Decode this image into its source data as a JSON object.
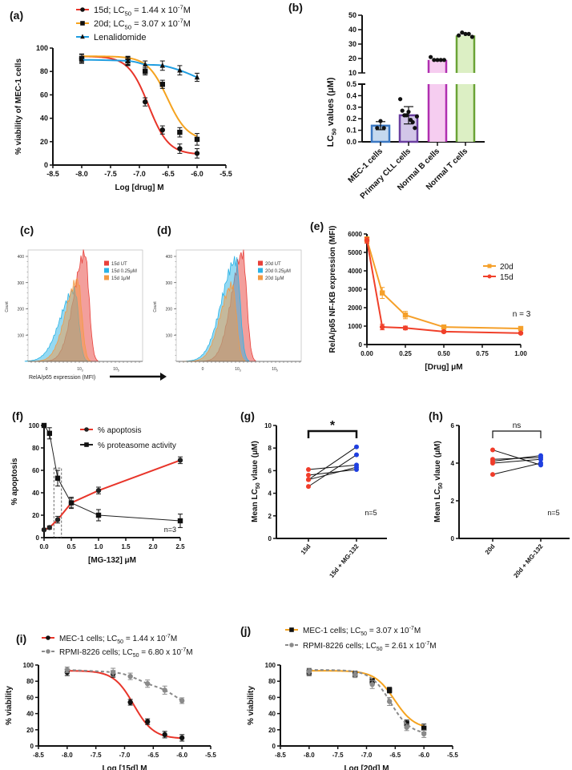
{
  "chart_data": [
    {
      "panel": "(a)",
      "type": "line",
      "xlabel": "Log [drug] M",
      "ylabel": "% viability of MEC-1 cells",
      "xlim": [
        -8.5,
        -5.5
      ],
      "ylim": [
        0,
        100
      ],
      "xticks": [
        "-8.5",
        "-8.0",
        "-7.5",
        "-7.0",
        "-6.5",
        "-6.0",
        "-5.5"
      ],
      "yticks": [
        "0",
        "20",
        "40",
        "60",
        "80",
        "100"
      ],
      "legend_position": "top",
      "series": [
        {
          "name_parts": [
            "15d; LC",
            "50",
            " = 1.44 x 10",
            "-7",
            "M"
          ],
          "lc50_M": 1.44e-07,
          "color": "#e8352a",
          "marker": "circle",
          "fit": "sigmoid",
          "x": [
            -8,
            -7.2,
            -6.9,
            -6.6,
            -6.3,
            -6
          ],
          "y": [
            91,
            89,
            54,
            30,
            14,
            10
          ],
          "err": [
            4,
            4,
            3.5,
            3.5,
            4,
            4
          ]
        },
        {
          "name_parts": [
            "20d; LC",
            "50",
            " = 3.07 x 10",
            "-7",
            "M"
          ],
          "lc50_M": 3.07e-07,
          "color": "#f5a31f",
          "marker": "square",
          "fit": "sigmoid",
          "x": [
            -8,
            -7.2,
            -6.9,
            -6.6,
            -6.3,
            -6
          ],
          "y": [
            91,
            89,
            80,
            69,
            28,
            22
          ],
          "err": [
            3.5,
            3.5,
            3,
            3.5,
            4,
            5
          ]
        },
        {
          "name_parts": [
            "Lenalidomide"
          ],
          "color": "#1f9de0",
          "marker": "triangle",
          "fit": "smooth",
          "x": [
            -8,
            -7.2,
            -6.9,
            -6.6,
            -6.3,
            -6
          ],
          "y": [
            90,
            89,
            86,
            85,
            81,
            75
          ],
          "err": [
            3,
            3,
            3,
            4,
            4,
            3.5
          ]
        }
      ]
    },
    {
      "panel": "(b)",
      "type": "bar",
      "ylabel_parts": [
        "LC",
        "50",
        " values (μM)"
      ],
      "categories": [
        "MEC-1 cells",
        "Primary CLL cells",
        "Normal B cells",
        "Normal T cells"
      ],
      "yticks_lower": [
        "0.0",
        "0.1",
        "0.2",
        "0.3",
        "0.4",
        "0.5"
      ],
      "yticks_upper": [
        "10",
        "20",
        "30",
        "40",
        "50"
      ],
      "ylim_lower": [
        0,
        0.5
      ],
      "ylim_upper": [
        10,
        50
      ],
      "broken_axis": true,
      "bars": [
        {
          "mean": 0.14,
          "sd": 0.035,
          "fill": "#c5d9ef",
          "stroke": "#3b78c2",
          "points": [
            0.12,
            0.18,
            0.12
          ]
        },
        {
          "mean": 0.23,
          "sd": 0.075,
          "fill": "#d2c6e8",
          "stroke": "#6a3fa0",
          "points": [
            0.37,
            0.27,
            0.23,
            0.23,
            0.26,
            0.19,
            0.17,
            0.12,
            0.22
          ]
        },
        {
          "mean": 19,
          "fill": "#f6cdf0",
          "stroke": "#b02fb0",
          "points": [
            21,
            19,
            19,
            19,
            19
          ]
        },
        {
          "mean": 36,
          "fill": "#dcefc4",
          "stroke": "#6aa336",
          "points": [
            36,
            38,
            37,
            37,
            35
          ]
        }
      ]
    },
    {
      "panel": "(c)",
      "type": "area",
      "ylabel": "Count",
      "xlabel": "RelA/p65 expression (MFI)",
      "yticks": [
        "100",
        "200",
        "300",
        "400"
      ],
      "xticks": [
        [
          "0"
        ],
        [
          "10",
          "3"
        ],
        [
          "10",
          "5"
        ]
      ],
      "series": [
        {
          "name": "15d UT",
          "color": "#e8403a",
          "peak_count": 410,
          "peak_mfi_log10": 3.27
        },
        {
          "name": "15d 0.25μM",
          "color": "#2bb3e6",
          "peak_count": 270,
          "peak_mfi_log10": 2.7
        },
        {
          "name": "15d 1μM",
          "color": "#f39a45",
          "peak_count": 310,
          "peak_mfi_log10": 2.87
        }
      ]
    },
    {
      "panel": "(d)",
      "type": "area",
      "ylabel": "Count",
      "yticks": [
        "100",
        "200",
        "300",
        "400"
      ],
      "xticks": [
        [
          "0"
        ],
        [
          "10",
          "3"
        ],
        [
          "10",
          "5"
        ]
      ],
      "series": [
        {
          "name": "20d UT",
          "color": "#e8403a",
          "peak_count": 410,
          "peak_mfi_log10": 3.26
        },
        {
          "name": "20d 0.25μM",
          "color": "#2bb3e6",
          "peak_count": 385,
          "peak_mfi_log10": 2.9
        },
        {
          "name": "20d 1μM",
          "color": "#f39a45",
          "peak_count": 290,
          "peak_mfi_log10": 2.7
        }
      ]
    },
    {
      "panel": "(e)",
      "type": "line",
      "xlabel": "[Drug] μM",
      "ylabel": "RelA/p65 NF-KB expression (MFI)",
      "xlim": [
        0,
        1
      ],
      "ylim": [
        0,
        6000
      ],
      "xticks": [
        "0.00",
        "0.25",
        "0.50",
        "0.75",
        "1.00"
      ],
      "yticks": [
        "0",
        "1000",
        "2000",
        "3000",
        "4000",
        "5000",
        "6000"
      ],
      "annotation": "n = 3",
      "legend_position": "right",
      "series": [
        {
          "name_parts": [
            "20d"
          ],
          "color": "#f5a02a",
          "marker": "square",
          "fit": "straight",
          "markerColor": "#f5a02a",
          "x": [
            0,
            0.1,
            0.25,
            0.5,
            1.0
          ],
          "y": [
            5700,
            2800,
            1600,
            950,
            870
          ],
          "err": [
            150,
            300,
            200,
            100,
            80
          ]
        },
        {
          "name_parts": [
            "15d"
          ],
          "color": "#f0402a",
          "marker": "circle",
          "fit": "straight",
          "markerColor": "#f0402a",
          "x": [
            0,
            0.1,
            0.25,
            0.5,
            1.0
          ],
          "y": [
            5650,
            950,
            900,
            700,
            620
          ],
          "err": [
            150,
            150,
            100,
            60,
            50
          ]
        }
      ]
    },
    {
      "panel": "(f)",
      "type": "line",
      "xlabel": "[MG-132] μM",
      "ylabel": "% apoptosis",
      "xlim": [
        0,
        2.5
      ],
      "ylim": [
        0,
        100
      ],
      "xticks": [
        "0.0",
        "0.5",
        "1.0",
        "1.5",
        "2.0",
        "2.5"
      ],
      "yticks": [
        "0",
        "20",
        "40",
        "60",
        "80",
        "100"
      ],
      "annotation": "n=3",
      "legend_position": "top-right",
      "highlight_box_x": [
        0.18,
        0.32
      ],
      "series": [
        {
          "name_parts": [
            "% apoptosis"
          ],
          "color": "#e8352a",
          "marker": "circle",
          "fit": "straight",
          "markerColor": "#222",
          "x": [
            0,
            0.1,
            0.25,
            0.5,
            1.0,
            2.5
          ],
          "y": [
            7,
            9,
            16,
            31,
            42,
            69
          ],
          "err": [
            1,
            1.5,
            3,
            4,
            3,
            3
          ]
        },
        {
          "name_parts": [
            "% proteasome activity"
          ],
          "color": "#222",
          "marker": "square",
          "fit": "straight",
          "markerColor": "#111",
          "x": [
            0,
            0.1,
            0.25,
            0.5,
            1.0,
            2.5
          ],
          "y": [
            100,
            93,
            53,
            31,
            20,
            15
          ],
          "err": [
            1,
            5,
            7,
            5,
            5,
            6
          ]
        }
      ]
    },
    {
      "panel": "(g)",
      "type": "scatter",
      "ylabel_parts": [
        "Mean LC",
        "50",
        " vlaue (μM)"
      ],
      "categories": [
        "15d",
        "15d + MG-132"
      ],
      "ylim": [
        0,
        10
      ],
      "yticks": [
        "0",
        "2",
        "4",
        "6",
        "8",
        "10"
      ],
      "significance": "*",
      "annotation": "n=5",
      "colors": [
        "#f03c2a",
        "#1f3fe0"
      ],
      "pairs": [
        [
          6.1,
          6.5
        ],
        [
          5.6,
          6.1
        ],
        [
          5.2,
          8.1
        ],
        [
          4.6,
          7.4
        ],
        [
          5.2,
          6.3
        ]
      ]
    },
    {
      "panel": "(h)",
      "type": "scatter",
      "ylabel_parts": [
        "Mean LC",
        "50",
        " vlaue (μM)"
      ],
      "categories": [
        "20d",
        "20d + MG-132"
      ],
      "ylim": [
        0,
        6
      ],
      "yticks": [
        "0",
        "2",
        "4",
        "6"
      ],
      "significance": "ns",
      "annotation": "n=5",
      "colors": [
        "#f03c2a",
        "#1f3fe0"
      ],
      "pairs": [
        [
          4.7,
          3.9
        ],
        [
          4.2,
          4.3
        ],
        [
          4.1,
          4.4
        ],
        [
          4.0,
          4.2
        ],
        [
          3.4,
          4.0
        ]
      ]
    },
    {
      "panel": "(i)",
      "type": "line",
      "xlabel": "Log [15d] M",
      "ylabel": "% viability",
      "xlim": [
        -8.5,
        -5.5
      ],
      "ylim": [
        0,
        100
      ],
      "xticks": [
        "-8.5",
        "-8.0",
        "-7.5",
        "-7.0",
        "-6.5",
        "-6.0",
        "-5.5"
      ],
      "yticks": [
        "0",
        "20",
        "40",
        "60",
        "80",
        "100"
      ],
      "legend_position": "top",
      "series": [
        {
          "name_parts": [
            "MEC-1 cells; LC",
            "50",
            " = 1.44 x 10",
            "-7",
            "M"
          ],
          "lc50_M": 1.44e-07,
          "color": "#e8352a",
          "marker": "circle",
          "fit": "sigmoid",
          "markerColor": "#111",
          "x": [
            -8,
            -7.2,
            -6.9,
            -6.6,
            -6.3,
            -6
          ],
          "y": [
            91,
            89,
            54,
            30,
            14,
            10
          ],
          "err": [
            4,
            4,
            3.5,
            3.5,
            4,
            4
          ]
        },
        {
          "name_parts": [
            "RPMI-8226 cells; LC",
            "50",
            " = 6.80 x 10",
            "-7",
            "M"
          ],
          "lc50_M": 6.8e-07,
          "color": "#8a8a8a",
          "marker": "circle",
          "fit": "smooth",
          "dashed": true,
          "markerColor": "#8a8a8a",
          "x": [
            -8,
            -7.2,
            -6.9,
            -6.6,
            -6.3,
            -6
          ],
          "y": [
            94,
            91,
            86,
            77,
            69,
            56
          ],
          "err": [
            3.5,
            5,
            4,
            4.5,
            5,
            3.5
          ]
        }
      ]
    },
    {
      "panel": "(j)",
      "type": "line",
      "xlabel": "Log [20d] M",
      "ylabel": "% viability",
      "xlim": [
        -8.5,
        -5.5
      ],
      "ylim": [
        0,
        100
      ],
      "xticks": [
        "-8.5",
        "-8.0",
        "-7.5",
        "-7.0",
        "-6.5",
        "-6.0",
        "-5.5"
      ],
      "yticks": [
        "0",
        "20",
        "40",
        "60",
        "80",
        "100"
      ],
      "legend_position": "top",
      "series": [
        {
          "name_parts": [
            "MEC-1 cells; LC",
            "50",
            " = 3.07 x 10",
            "-7",
            "M"
          ],
          "lc50_M": 3.07e-07,
          "color": "#f5a31f",
          "marker": "square",
          "fit": "sigmoid",
          "markerColor": "#111",
          "x": [
            -8,
            -7.2,
            -6.9,
            -6.6,
            -6.3,
            -6
          ],
          "y": [
            91,
            89,
            80,
            69,
            28,
            22
          ],
          "err": [
            4,
            3.5,
            3.5,
            3.5,
            4,
            5
          ]
        },
        {
          "name_parts": [
            "RPMI-8226 cells; LC",
            "50",
            " = 2.61 x 10",
            "-7",
            "M"
          ],
          "lc50_M": 2.61e-07,
          "color": "#8a8a8a",
          "marker": "circle",
          "fit": "sigmoid",
          "dashed": true,
          "markerColor": "#8a8a8a",
          "x": [
            -8,
            -7.2,
            -6.9,
            -6.6,
            -6.3,
            -6
          ],
          "y": [
            92,
            88,
            76,
            55,
            23,
            15
          ],
          "err": [
            4,
            3.5,
            5,
            5,
            4,
            4.5
          ]
        }
      ]
    }
  ]
}
